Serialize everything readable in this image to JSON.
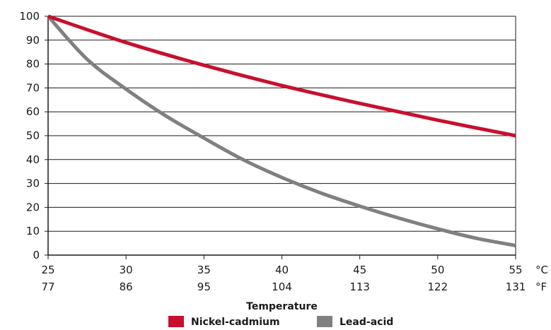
{
  "chart_data": {
    "type": "line",
    "title": "",
    "xlabel": "Temperature",
    "ylabel": "",
    "ylim": [
      0,
      100
    ],
    "yticks": [
      0,
      10,
      20,
      30,
      40,
      50,
      60,
      70,
      80,
      90,
      100
    ],
    "xlim": [
      25,
      55
    ],
    "xticks_c": [
      25,
      30,
      35,
      40,
      45,
      50,
      55
    ],
    "xticks_f": [
      77,
      86,
      95,
      104,
      113,
      122,
      131
    ],
    "x_unit_c": "°C",
    "x_unit_f": "°F",
    "grid": "horizontal",
    "legend_position": "bottom",
    "series": [
      {
        "name": "Nickel-cadmium",
        "color": "#c8102e",
        "x": [
          25,
          30,
          35,
          40,
          45,
          50,
          55
        ],
        "y": [
          100,
          89,
          79.5,
          71,
          63.5,
          56.5,
          50
        ]
      },
      {
        "name": "Lead-acid",
        "color": "#808080",
        "x": [
          25,
          27.5,
          30,
          32.5,
          35,
          37.5,
          40,
          42.5,
          45,
          47.5,
          50,
          52.5,
          55
        ],
        "y": [
          100,
          82,
          69.5,
          58.5,
          49,
          40,
          32.5,
          26,
          20.5,
          15.5,
          11,
          7,
          4
        ]
      }
    ]
  }
}
